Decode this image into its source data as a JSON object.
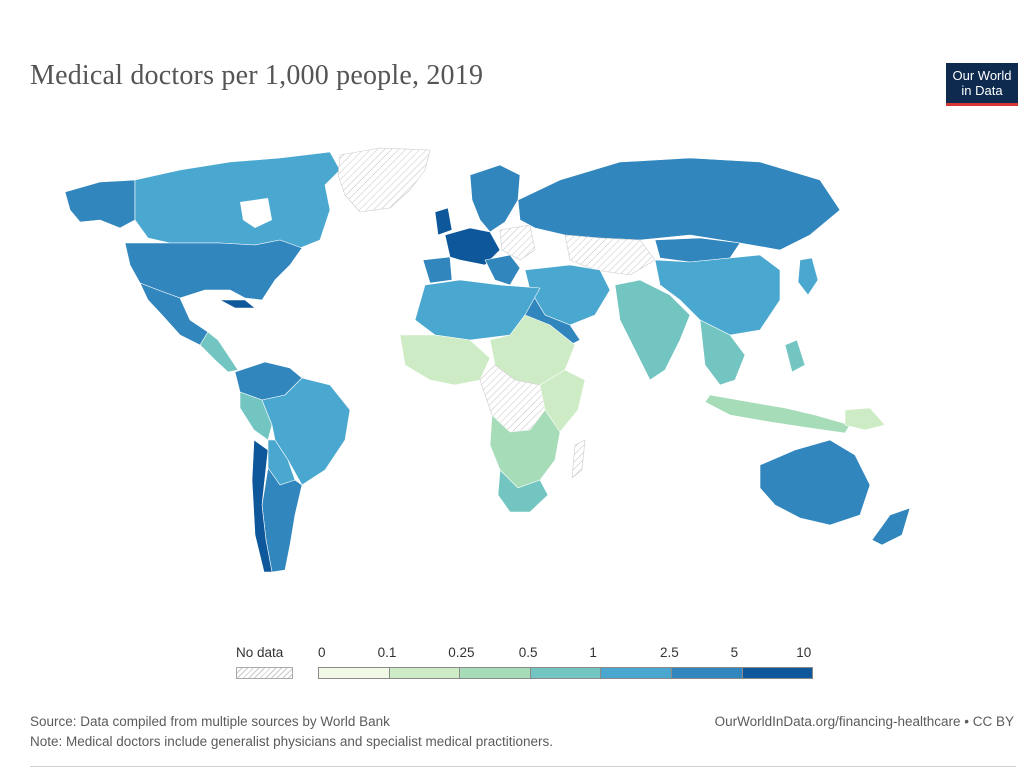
{
  "header": {
    "title": "Medical doctors per 1,000 people, 2019",
    "logo_line1": "Our World",
    "logo_line2": "in Data"
  },
  "legend": {
    "no_data_label": "No data",
    "ticks": [
      "0",
      "0.1",
      "0.25",
      "0.5",
      "1",
      "2.5",
      "5",
      "10"
    ],
    "colors": [
      "#f1f8e6",
      "#cdebc4",
      "#a6dcb7",
      "#72c5c0",
      "#4aa8d0",
      "#3186bd",
      "#0d579a"
    ],
    "no_data_color": "#d6d6d6"
  },
  "footer": {
    "source": "Source: Data compiled from multiple sources by World Bank",
    "note": "Note: Medical doctors include generalist physicians and specialist medical practitioners.",
    "link": "OurWorldInData.org/financing-healthcare • CC BY"
  }
}
